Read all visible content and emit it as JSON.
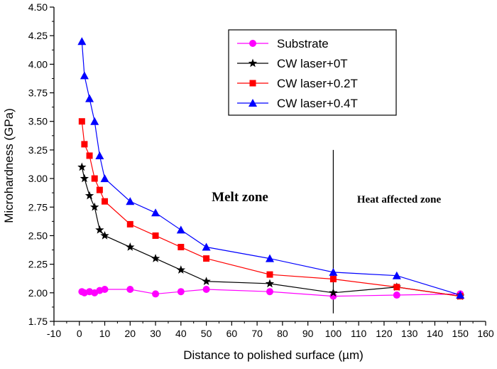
{
  "chart_data": {
    "type": "line",
    "title": "",
    "xlabel": "Distance to polished surface (µm)",
    "ylabel": "Microhardness (GPa)",
    "xlim": [
      -10,
      160
    ],
    "ylim": [
      1.75,
      4.5
    ],
    "xticks": [
      -10,
      0,
      10,
      20,
      30,
      40,
      50,
      60,
      70,
      80,
      90,
      100,
      110,
      120,
      130,
      140,
      150,
      160
    ],
    "yticks": [
      1.75,
      2.0,
      2.25,
      2.5,
      2.75,
      3.0,
      3.25,
      3.5,
      3.75,
      4.0,
      4.25,
      4.5
    ],
    "xtick_labels": [
      "-10",
      "0",
      "10",
      "20",
      "30",
      "40",
      "50",
      "60",
      "70",
      "80",
      "90",
      "100",
      "110",
      "120",
      "130",
      "140",
      "150",
      "160"
    ],
    "ytick_labels": [
      "1.75",
      "2.00",
      "2.25",
      "2.50",
      "2.75",
      "3.00",
      "3.25",
      "3.50",
      "3.75",
      "4.00",
      "4.25",
      "4.50"
    ],
    "grid": false,
    "legend_position": "top-right",
    "series": [
      {
        "name": "Substrate",
        "color": "#ff00ff",
        "marker": "circle",
        "x": [
          1,
          2,
          4,
          6,
          8,
          10,
          20,
          30,
          40,
          50,
          75,
          100,
          125,
          150
        ],
        "y": [
          2.01,
          2.0,
          2.01,
          2.0,
          2.02,
          2.03,
          2.03,
          1.99,
          2.01,
          2.03,
          2.01,
          1.97,
          1.98,
          1.99
        ]
      },
      {
        "name": "CW laser+0T",
        "color": "#000000",
        "marker": "star",
        "x": [
          1,
          2,
          4,
          6,
          8,
          10,
          20,
          30,
          40,
          50,
          75,
          100,
          125,
          150
        ],
        "y": [
          3.1,
          3.0,
          2.85,
          2.75,
          2.55,
          2.5,
          2.4,
          2.3,
          2.2,
          2.1,
          2.08,
          2.0,
          2.05,
          1.97
        ]
      },
      {
        "name": "CW laser+0.2T",
        "color": "#ff0000",
        "marker": "square",
        "x": [
          1,
          2,
          4,
          6,
          8,
          10,
          20,
          30,
          40,
          50,
          75,
          100,
          125,
          150
        ],
        "y": [
          3.5,
          3.3,
          3.2,
          3.0,
          2.9,
          2.8,
          2.6,
          2.5,
          2.4,
          2.3,
          2.16,
          2.12,
          2.05,
          1.97
        ]
      },
      {
        "name": "CW laser+0.4T",
        "color": "#0000ff",
        "marker": "triangle",
        "x": [
          1,
          2,
          4,
          6,
          8,
          10,
          20,
          30,
          40,
          50,
          75,
          100,
          125,
          150
        ],
        "y": [
          4.2,
          3.9,
          3.7,
          3.5,
          3.2,
          3.0,
          2.8,
          2.7,
          2.55,
          2.4,
          2.3,
          2.18,
          2.15,
          1.98
        ]
      }
    ],
    "annotations": [
      {
        "text": "Melt zone"
      },
      {
        "text": "Heat affected zone"
      }
    ],
    "divider_x": 100,
    "divider_y_range": [
      1.82,
      3.25
    ]
  }
}
